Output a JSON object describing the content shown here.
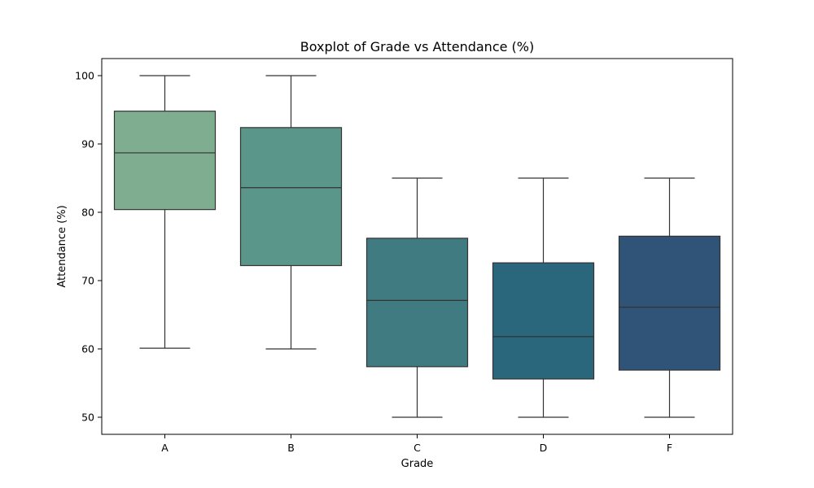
{
  "chart_data": {
    "type": "box",
    "title": "Boxplot of Grade vs Attendance (%)",
    "xlabel": "Grade",
    "ylabel": "Attendance (%)",
    "ylim": [
      47.5,
      102.5
    ],
    "yticks": [
      50,
      60,
      70,
      80,
      90,
      100
    ],
    "grid": false,
    "categories": [
      "A",
      "B",
      "C",
      "D",
      "F"
    ],
    "boxes": [
      {
        "category": "A",
        "min": 60.1,
        "q1": 80.4,
        "median": 88.7,
        "q3": 94.8,
        "max": 100,
        "color": "#7eae8f"
      },
      {
        "category": "B",
        "min": 60.0,
        "q1": 72.2,
        "median": 83.6,
        "q3": 92.4,
        "max": 100,
        "color": "#5a9689"
      },
      {
        "category": "C",
        "min": 50.0,
        "q1": 57.4,
        "median": 67.1,
        "q3": 76.2,
        "max": 85,
        "color": "#3f7b80"
      },
      {
        "category": "D",
        "min": 50.0,
        "q1": 55.6,
        "median": 61.8,
        "q3": 72.6,
        "max": 85,
        "color": "#2b677c"
      },
      {
        "category": "F",
        "min": 50.0,
        "q1": 56.9,
        "median": 66.1,
        "q3": 76.5,
        "max": 85,
        "color": "#2f5478"
      }
    ]
  }
}
